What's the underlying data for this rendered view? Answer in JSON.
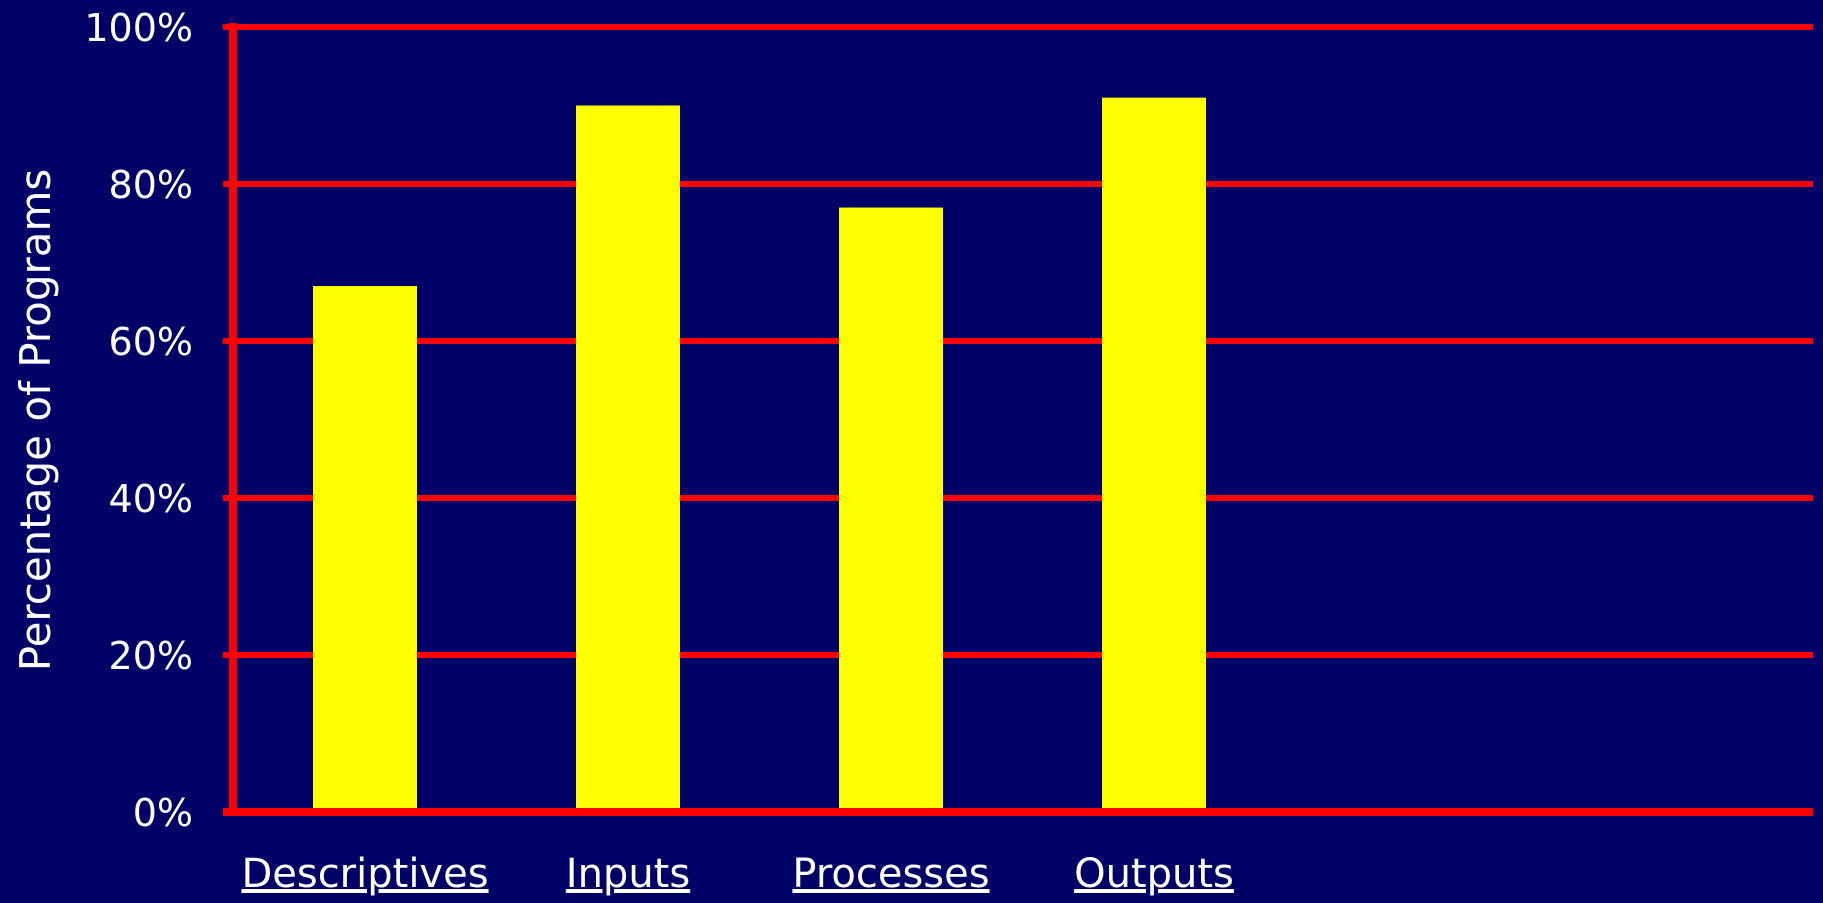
{
  "chart_data": {
    "type": "bar",
    "title": "",
    "xlabel": "",
    "ylabel": "Percentage of Programs",
    "categories": [
      "Descriptives",
      "Inputs",
      "Processes",
      "Outputs"
    ],
    "values": [
      67,
      90,
      77,
      91
    ],
    "ylim": [
      0,
      100
    ],
    "yticks": [
      0,
      20,
      40,
      60,
      80,
      100
    ],
    "ytick_labels": [
      "0%",
      "20%",
      "40%",
      "60%",
      "80%",
      "100%"
    ],
    "grid": true,
    "legend": "none",
    "colors": {
      "background": "#000066",
      "bar": "#FFFF00",
      "grid": "#FF0000",
      "axis": "#FF0000",
      "text": "#FFFFFF"
    }
  }
}
